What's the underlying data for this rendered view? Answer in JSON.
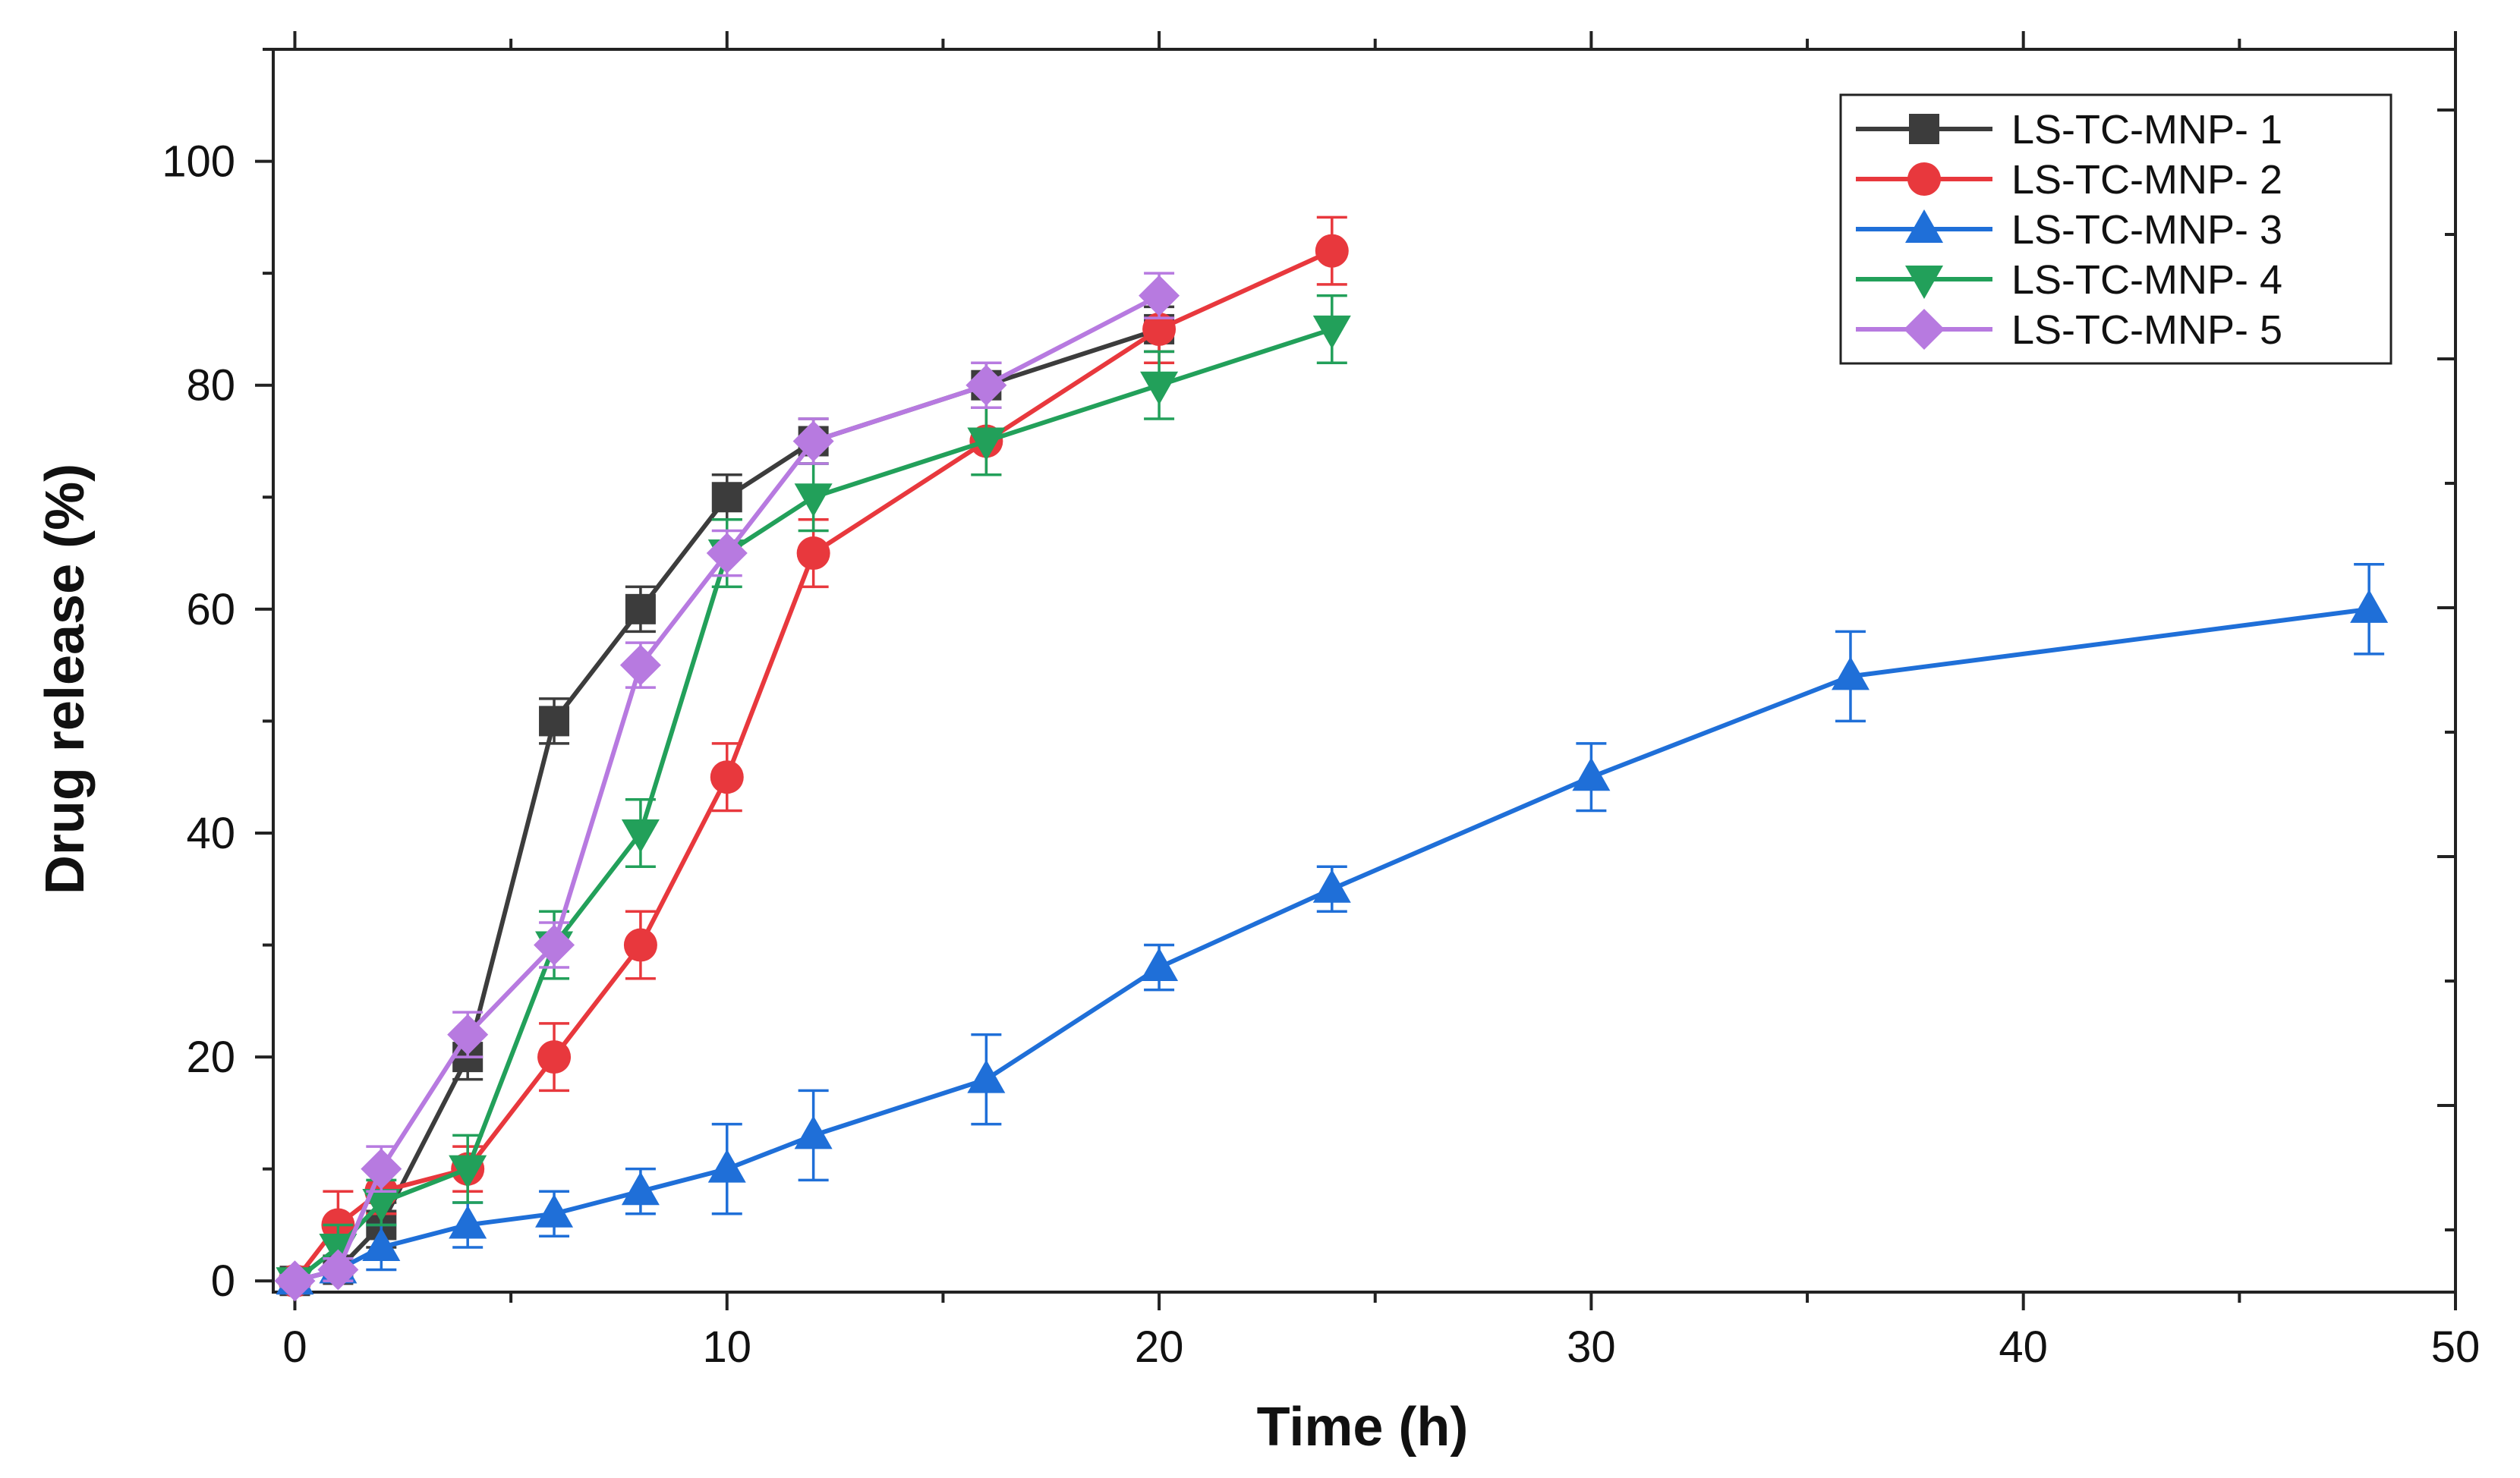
{
  "chart_data": {
    "type": "line",
    "title": "",
    "xlabel": "Time (h)",
    "ylabel": "Drug release (%)",
    "xlim": [
      -0.5,
      50
    ],
    "ylim": [
      -1,
      110
    ],
    "x_ticks": [
      0,
      10,
      20,
      30,
      40,
      50
    ],
    "y_ticks": [
      0,
      20,
      40,
      60,
      80,
      100
    ],
    "legend_position": "top-right",
    "series": [
      {
        "name": "LS-TC-MNP- 1",
        "color": "#3c3c3c",
        "marker": "square",
        "x": [
          0,
          1,
          2,
          4,
          6,
          8,
          10,
          12,
          16,
          20
        ],
        "values": [
          0,
          1,
          5,
          20,
          50,
          60,
          70,
          75,
          80,
          85
        ],
        "errors": [
          0.5,
          1,
          2,
          2,
          2,
          2,
          2,
          2,
          2,
          2
        ]
      },
      {
        "name": "LS-TC-MNP- 2",
        "color": "#e8383d",
        "marker": "circle",
        "x": [
          0,
          1,
          2,
          4,
          6,
          8,
          10,
          12,
          16,
          20,
          24
        ],
        "values": [
          0,
          5,
          8,
          10,
          20,
          30,
          45,
          65,
          75,
          85,
          92
        ],
        "errors": [
          0.5,
          3,
          2,
          2,
          3,
          3,
          3,
          3,
          3,
          3,
          3
        ]
      },
      {
        "name": "LS-TC-MNP- 3",
        "color": "#1f6fd8",
        "marker": "triangle-up",
        "x": [
          0,
          1,
          2,
          4,
          6,
          8,
          10,
          12,
          16,
          20,
          24,
          30,
          36,
          48
        ],
        "values": [
          0,
          1,
          3,
          5,
          6,
          8,
          10,
          13,
          18,
          28,
          35,
          45,
          54,
          60
        ],
        "errors": [
          0.5,
          1,
          2,
          2,
          2,
          2,
          4,
          4,
          4,
          2,
          2,
          3,
          4,
          4
        ]
      },
      {
        "name": "LS-TC-MNP- 4",
        "color": "#22a05a",
        "marker": "triangle-down",
        "x": [
          0,
          1,
          2,
          4,
          6,
          8,
          10,
          12,
          16,
          20,
          24
        ],
        "values": [
          0,
          3,
          7,
          10,
          30,
          40,
          65,
          70,
          75,
          80,
          85
        ],
        "errors": [
          0.5,
          2,
          2,
          3,
          3,
          3,
          3,
          3,
          3,
          3,
          3
        ]
      },
      {
        "name": "LS-TC-MNP- 5",
        "color": "#b77ae0",
        "marker": "diamond",
        "x": [
          0,
          1,
          2,
          4,
          6,
          8,
          10,
          12,
          16,
          20
        ],
        "values": [
          0,
          1,
          10,
          22,
          30,
          55,
          65,
          75,
          80,
          88
        ],
        "errors": [
          0.5,
          1,
          2,
          2,
          2,
          2,
          2,
          2,
          2,
          2
        ]
      }
    ]
  }
}
